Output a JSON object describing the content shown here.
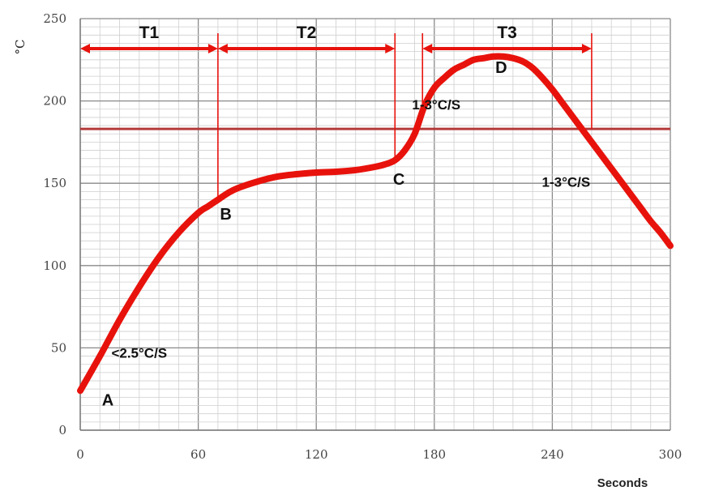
{
  "chart_data": {
    "type": "line",
    "xlabel": "Seconds",
    "ylabel": "°C",
    "xlim": [
      0,
      300
    ],
    "ylim": [
      0,
      250
    ],
    "x_ticks": [
      0,
      60,
      120,
      180,
      240,
      300
    ],
    "y_ticks": [
      0,
      50,
      100,
      150,
      200,
      250
    ],
    "grid": true,
    "series": [
      {
        "color": "#e8120c",
        "x": [
          0,
          10,
          20,
          30,
          40,
          50,
          60,
          65,
          70,
          75,
          80,
          90,
          100,
          110,
          120,
          130,
          140,
          150,
          155,
          160,
          165,
          170,
          175,
          180,
          185,
          190,
          195,
          200,
          205,
          210,
          215,
          220,
          225,
          230,
          235,
          240,
          245,
          250,
          255,
          260,
          265,
          270,
          275,
          280,
          285,
          290,
          295,
          300
        ],
        "y": [
          24,
          45,
          67,
          87,
          105,
          120,
          132,
          136,
          140,
          144,
          147,
          151,
          154,
          155.5,
          156.5,
          157,
          158,
          160,
          161.5,
          164,
          170,
          180,
          197,
          208,
          214,
          219,
          222,
          225,
          226,
          227,
          227,
          226,
          224,
          220,
          214,
          207,
          199,
          191,
          183,
          175,
          167,
          159,
          151,
          143,
          135,
          127,
          120,
          112
        ]
      }
    ],
    "threshold_line": {
      "y": 183,
      "color": "#b33a3a"
    },
    "intervals": [
      {
        "label": "T1",
        "x_start": 0,
        "x_end": 70
      },
      {
        "label": "T2",
        "x_start": 70,
        "x_end": 160
      },
      {
        "label": "T3",
        "x_start": 174,
        "x_end": 260
      }
    ],
    "points": [
      {
        "label": "A",
        "x": 14,
        "y": 15
      },
      {
        "label": "B",
        "x": 74,
        "y": 128
      },
      {
        "label": "C",
        "x": 162,
        "y": 149
      },
      {
        "label": "D",
        "x": 214,
        "y": 217
      }
    ],
    "annotations": [
      {
        "text": "<2.5°C/S",
        "x": 30,
        "y": 44
      },
      {
        "text": "1-3°C/S",
        "x": 181,
        "y": 195
      },
      {
        "text": "1-3°C/S",
        "x": 247,
        "y": 148
      }
    ]
  }
}
